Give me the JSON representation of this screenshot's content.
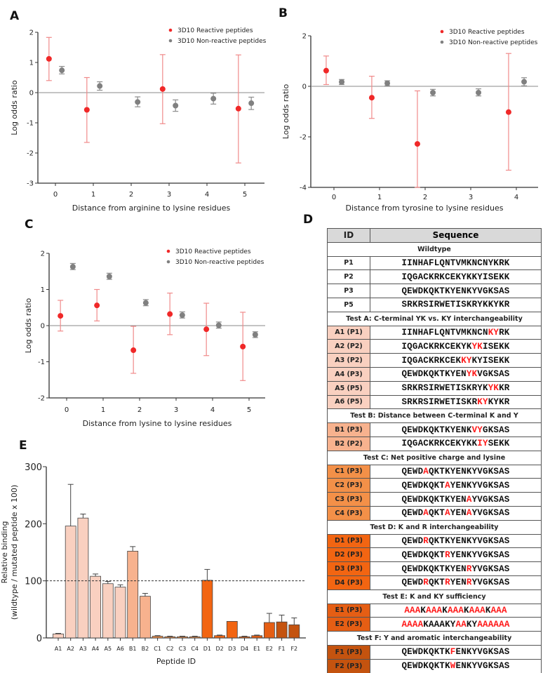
{
  "panel_labels": [
    "A",
    "B",
    "C",
    "D",
    "E"
  ],
  "chart_data": [
    {
      "type": "scatter",
      "panel": "A",
      "xlabel": "Distance from arginine to lysine residues",
      "ylabel": "Log odds ratio",
      "ylim": [
        -3,
        2
      ],
      "yticks": [
        "2",
        "1",
        "0",
        "-1",
        "-2",
        "-3"
      ],
      "xticks": [
        "0",
        "1",
        "2",
        "3",
        "4",
        "5"
      ],
      "legend": [
        "3D10 Reactive peptides",
        "3D10 Non-reactive peptides"
      ],
      "legend_position": "top-right",
      "series": [
        {
          "name": "3D10 Reactive peptides",
          "color": "#f02828",
          "err_color": "#f08a8a",
          "points": [
            {
              "x": 0,
              "y": 1.12,
              "lo": 0.4,
              "hi": 1.83
            },
            {
              "x": 1,
              "y": -0.57,
              "lo": -1.65,
              "hi": 0.5
            },
            {
              "x": 3,
              "y": 0.12,
              "lo": -1.03,
              "hi": 1.26
            },
            {
              "x": 5,
              "y": -0.53,
              "lo": -2.33,
              "hi": 1.25
            }
          ]
        },
        {
          "name": "3D10 Non-reactive peptides",
          "color": "#808080",
          "err_color": "#8c8c8c",
          "points": [
            {
              "x": 0,
              "y": 0.74,
              "lo": 0.62,
              "hi": 0.87
            },
            {
              "x": 1,
              "y": 0.22,
              "lo": 0.08,
              "hi": 0.36
            },
            {
              "x": 2,
              "y": -0.31,
              "lo": -0.47,
              "hi": -0.14
            },
            {
              "x": 3,
              "y": -0.43,
              "lo": -0.62,
              "hi": -0.24
            },
            {
              "x": 4,
              "y": -0.2,
              "lo": -0.38,
              "hi": -0.02
            },
            {
              "x": 5,
              "y": -0.35,
              "lo": -0.56,
              "hi": -0.15
            }
          ]
        }
      ]
    },
    {
      "type": "scatter",
      "panel": "B",
      "xlabel": "Distance from tyrosine to lysine residues",
      "ylabel": "Log odds ratio",
      "ylim": [
        -4,
        2
      ],
      "yticks": [
        "2",
        "0",
        "-2",
        "-4"
      ],
      "xticks": [
        "0",
        "1",
        "2",
        "3",
        "4"
      ],
      "legend": [
        "3D10 Reactive peptides",
        "3D10 Non-reactive peptides"
      ],
      "legend_position": "top-right",
      "series": [
        {
          "name": "3D10 Reactive peptides",
          "color": "#f02828",
          "err_color": "#f08a8a",
          "points": [
            {
              "x": 0,
              "y": 0.62,
              "lo": 0.07,
              "hi": 1.2
            },
            {
              "x": 1,
              "y": -0.45,
              "lo": -1.27,
              "hi": 0.4
            },
            {
              "x": 2,
              "y": -2.28,
              "lo": -4.0,
              "hi": -0.18
            },
            {
              "x": 4,
              "y": -1.02,
              "lo": -3.32,
              "hi": 1.3
            }
          ]
        },
        {
          "name": "3D10 Non-reactive peptides",
          "color": "#808080",
          "err_color": "#8c8c8c",
          "points": [
            {
              "x": 0,
              "y": 0.17,
              "lo": 0.07,
              "hi": 0.27
            },
            {
              "x": 1,
              "y": 0.12,
              "lo": 0.02,
              "hi": 0.22
            },
            {
              "x": 2,
              "y": -0.25,
              "lo": -0.38,
              "hi": -0.12
            },
            {
              "x": 3,
              "y": -0.25,
              "lo": -0.38,
              "hi": -0.1
            },
            {
              "x": 4,
              "y": 0.18,
              "lo": 0.02,
              "hi": 0.34
            }
          ]
        }
      ]
    },
    {
      "type": "scatter",
      "panel": "C",
      "xlabel": "Distance from lysine to lysine residues",
      "ylabel": "Log odds ratio",
      "ylim": [
        -2,
        2
      ],
      "yticks": [
        "2",
        "1",
        "0",
        "-1",
        "-2"
      ],
      "xticks": [
        "0",
        "1",
        "2",
        "3",
        "4",
        "5"
      ],
      "legend": [
        "3D10 Reactive peptides",
        "3D10 Non-reactive peptides"
      ],
      "legend_position": "top-right",
      "series": [
        {
          "name": "3D10 Reactive peptides",
          "color": "#f02828",
          "err_color": "#f08a8a",
          "points": [
            {
              "x": 0,
              "y": 0.27,
              "lo": -0.15,
              "hi": 0.7
            },
            {
              "x": 1,
              "y": 0.56,
              "lo": 0.13,
              "hi": 1.0
            },
            {
              "x": 2,
              "y": -0.68,
              "lo": -1.32,
              "hi": -0.02
            },
            {
              "x": 3,
              "y": 0.32,
              "lo": -0.25,
              "hi": 0.9
            },
            {
              "x": 4,
              "y": -0.1,
              "lo": -0.83,
              "hi": 0.62
            },
            {
              "x": 5,
              "y": -0.58,
              "lo": -1.52,
              "hi": 0.37
            }
          ]
        },
        {
          "name": "3D10 Non-reactive peptides",
          "color": "#808080",
          "err_color": "#8c8c8c",
          "points": [
            {
              "x": 0,
              "y": 1.63,
              "lo": 1.55,
              "hi": 1.72
            },
            {
              "x": 1,
              "y": 1.36,
              "lo": 1.28,
              "hi": 1.45
            },
            {
              "x": 2,
              "y": 0.63,
              "lo": 0.55,
              "hi": 0.72
            },
            {
              "x": 3,
              "y": 0.29,
              "lo": 0.21,
              "hi": 0.38
            },
            {
              "x": 4,
              "y": 0.01,
              "lo": -0.07,
              "hi": 0.1
            },
            {
              "x": 5,
              "y": -0.25,
              "lo": -0.33,
              "hi": -0.17
            }
          ]
        }
      ]
    },
    {
      "type": "bar",
      "panel": "E",
      "xlabel": "Peptide ID",
      "ylabel": [
        "Relative binding",
        "(wildtype / mutated peptide x 100)"
      ],
      "ylim": [
        0,
        300
      ],
      "yticks": [
        "300",
        "200",
        "100",
        "0"
      ],
      "reference_line": 100,
      "categories": [
        "A1",
        "A2",
        "A3",
        "A4",
        "A5",
        "A6",
        "B1",
        "B2",
        "C1",
        "C2",
        "C3",
        "C4",
        "D1",
        "D2",
        "D3",
        "D4",
        "E1",
        "E2",
        "F1",
        "F2"
      ],
      "values": [
        7,
        196,
        210,
        108,
        95,
        89,
        152,
        73,
        3,
        2,
        2,
        2,
        101,
        4,
        29,
        2,
        4,
        27,
        28,
        23
      ],
      "err_upper": [
        8,
        269,
        217,
        112,
        99,
        93,
        160,
        78,
        4,
        3,
        3,
        3,
        120,
        5,
        29,
        3,
        5,
        43,
        40,
        35
      ],
      "group_colors": {
        "A": "#f9d0c0",
        "B": "#f7b28e",
        "C": "#f39048",
        "D": "#f26512",
        "E": "#e55e14",
        "F": "#c4530f"
      }
    }
  ],
  "table": {
    "header": {
      "id": "ID",
      "sequence": "Sequence"
    },
    "sections": [
      {
        "title": "Wildtype",
        "color": "#ffffff",
        "rows": [
          {
            "id": "P1",
            "seq": [
              {
                "t": "IINHAFLQNTVMKNCNYKRK"
              }
            ]
          },
          {
            "id": "P2",
            "seq": [
              {
                "t": "IQGACKRKCEKYKKYISEKK"
              }
            ]
          },
          {
            "id": "P3",
            "seq": [
              {
                "t": "QEWDKQKTKYENKYVGKSAS"
              }
            ]
          },
          {
            "id": "P5",
            "seq": [
              {
                "t": "SRKRSIRWETISKRYKKYKR"
              }
            ]
          }
        ]
      },
      {
        "title": "Test A: C-terminal YK vs. KY interchangeability",
        "color": "#f9d0c0",
        "rows": [
          {
            "id": "A1 (P1)",
            "seq": [
              {
                "t": "IINHAFLQNTVMKNCN"
              },
              {
                "t": "KY",
                "red": true
              },
              {
                "t": "RK"
              }
            ]
          },
          {
            "id": "A2 (P2)",
            "seq": [
              {
                "t": "IQGACKRKCEKYK"
              },
              {
                "t": "YK",
                "red": true
              },
              {
                "t": "ISEKK"
              }
            ]
          },
          {
            "id": "A3 (P2)",
            "seq": [
              {
                "t": "IQGACKRKCEK"
              },
              {
                "t": "KY",
                "red": true
              },
              {
                "t": "KYISEKK"
              }
            ]
          },
          {
            "id": "A4 (P3)",
            "seq": [
              {
                "t": "QEWDKQKTKYEN"
              },
              {
                "t": "YK",
                "red": true
              },
              {
                "t": "VGKSAS"
              }
            ]
          },
          {
            "id": "A5 (P5)",
            "seq": [
              {
                "t": "SRKRSIRWETISKRYK"
              },
              {
                "t": "YK",
                "red": true
              },
              {
                "t": "KR"
              }
            ]
          },
          {
            "id": "A6 (P5)",
            "seq": [
              {
                "t": "SRKRSIRWETISKR"
              },
              {
                "t": "KY",
                "red": true
              },
              {
                "t": "KYKR"
              }
            ]
          }
        ]
      },
      {
        "title": "Test B: Distance between C-terminal K and Y",
        "color": "#f7b28e",
        "rows": [
          {
            "id": "B1 (P3)",
            "seq": [
              {
                "t": "QEWDKQKTKYENK"
              },
              {
                "t": "VY",
                "red": true
              },
              {
                "t": "GKSAS"
              }
            ]
          },
          {
            "id": "B2 (P2)",
            "seq": [
              {
                "t": "IQGACKRKCEKYKK"
              },
              {
                "t": "IY",
                "red": true
              },
              {
                "t": "SEKK"
              }
            ]
          }
        ]
      },
      {
        "title": "Test C: Net positive charge and lysine",
        "color": "#f39048",
        "rows": [
          {
            "id": "C1 (P3)",
            "seq": [
              {
                "t": "QEWD"
              },
              {
                "t": "A",
                "red": true
              },
              {
                "t": "QKTKYENKYVGKSAS"
              }
            ]
          },
          {
            "id": "C2 (P3)",
            "seq": [
              {
                "t": "QEWDKQKT"
              },
              {
                "t": "A",
                "red": true
              },
              {
                "t": "YENKYVGKSAS"
              }
            ]
          },
          {
            "id": "C3 (P3)",
            "seq": [
              {
                "t": "QEWDKQKTKYEN"
              },
              {
                "t": "A",
                "red": true
              },
              {
                "t": "YVGKSAS"
              }
            ]
          },
          {
            "id": "C4 (P3)",
            "seq": [
              {
                "t": "QEWD"
              },
              {
                "t": "A",
                "red": true
              },
              {
                "t": "QKT"
              },
              {
                "t": "A",
                "red": true
              },
              {
                "t": "YEN"
              },
              {
                "t": "A",
                "red": true
              },
              {
                "t": "YVGKSAS"
              }
            ]
          }
        ]
      },
      {
        "title": "Test D: K and R interchangeability",
        "color": "#f26512",
        "rows": [
          {
            "id": "D1 (P3)",
            "seq": [
              {
                "t": "QEWD"
              },
              {
                "t": "R",
                "red": true
              },
              {
                "t": "QKTKYENKYVGKSAS"
              }
            ]
          },
          {
            "id": "D2 (P3)",
            "seq": [
              {
                "t": "QEWDKQKT"
              },
              {
                "t": "R",
                "red": true
              },
              {
                "t": "YENKYVGKSAS"
              }
            ]
          },
          {
            "id": "D3 (P3)",
            "seq": [
              {
                "t": "QEWDKQKTKYEN"
              },
              {
                "t": "R",
                "red": true
              },
              {
                "t": "YVGKSAS"
              }
            ]
          },
          {
            "id": "D4 (P3)",
            "seq": [
              {
                "t": "QEWD"
              },
              {
                "t": "R",
                "red": true
              },
              {
                "t": "QKT"
              },
              {
                "t": "R",
                "red": true
              },
              {
                "t": "YEN"
              },
              {
                "t": "R",
                "red": true
              },
              {
                "t": "YVGKSAS"
              }
            ]
          }
        ]
      },
      {
        "title": "Test E: K and KY sufficiency",
        "color": "#e55e14",
        "rows": [
          {
            "id": "E1 (P3)",
            "seq": [
              {
                "t": "AAA",
                "red": true
              },
              {
                "t": "K"
              },
              {
                "t": "AAA",
                "red": true
              },
              {
                "t": "K"
              },
              {
                "t": "AAA",
                "red": true
              },
              {
                "t": "K"
              },
              {
                "t": "AAA",
                "red": true
              },
              {
                "t": "K"
              },
              {
                "t": "AAA",
                "red": true
              }
            ]
          },
          {
            "id": "E2 (P3)",
            "seq": [
              {
                "t": "AAAA",
                "red": true
              },
              {
                "t": "KAAAKY"
              },
              {
                "t": "AA",
                "red": true
              },
              {
                "t": "KY"
              },
              {
                "t": "AAAAAA",
                "red": true
              }
            ]
          }
        ]
      },
      {
        "title": "Test F: Y and aromatic interchangeability",
        "color": "#c4530f",
        "rows": [
          {
            "id": "F1 (P3)",
            "seq": [
              {
                "t": "QEWDKQKTK"
              },
              {
                "t": "F",
                "red": true
              },
              {
                "t": "ENKYVGKSAS"
              }
            ]
          },
          {
            "id": "F2 (P3)",
            "seq": [
              {
                "t": "QEWDKQKTK"
              },
              {
                "t": "W",
                "red": true
              },
              {
                "t": "ENKYVGKSAS"
              }
            ]
          }
        ]
      }
    ]
  }
}
